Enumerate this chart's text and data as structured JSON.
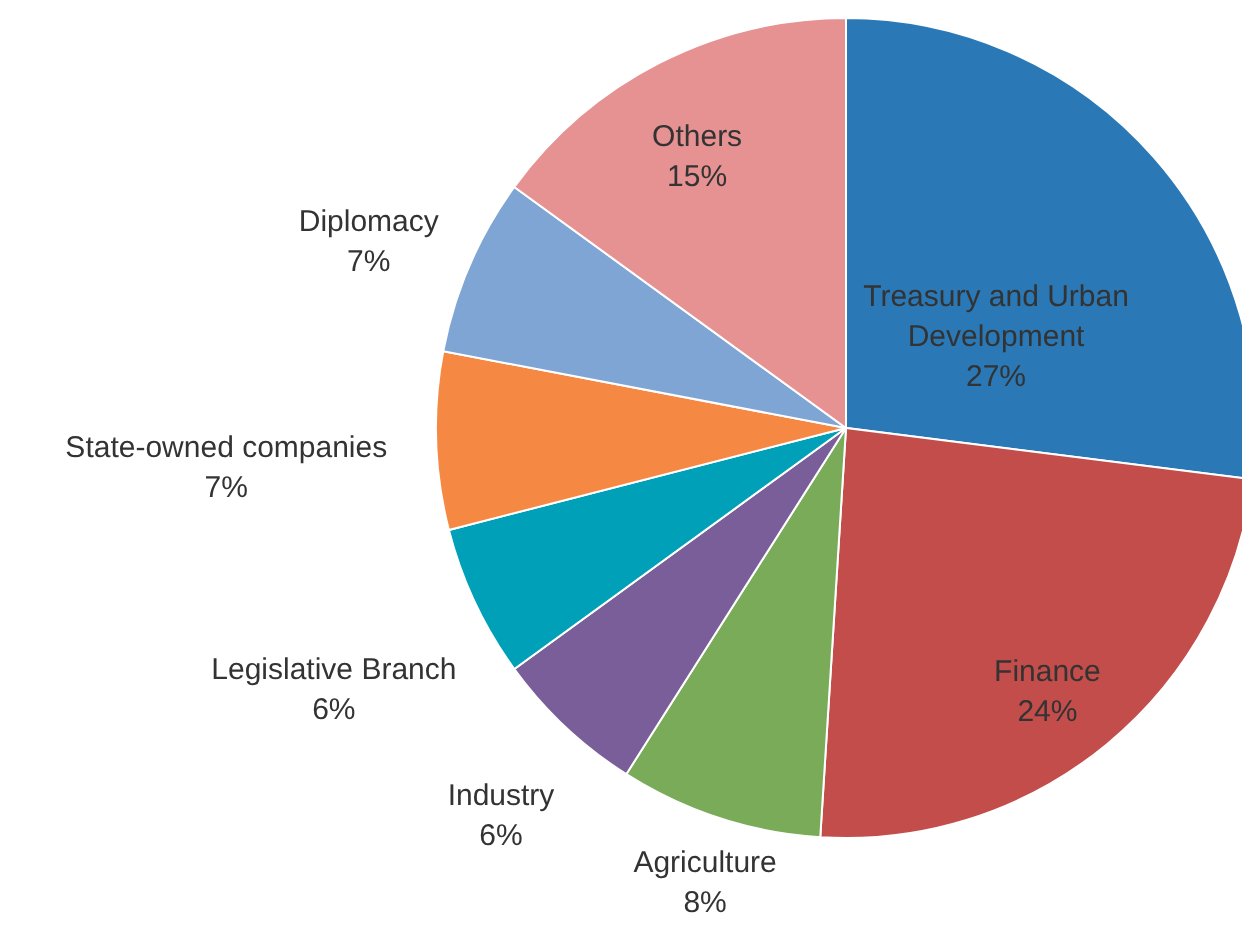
{
  "chart_data": {
    "type": "pie",
    "categories": [
      "Treasury and Urban Development",
      "Finance",
      "Agriculture",
      "Industry",
      "Legislative Branch",
      "State-owned companies",
      "Diplomacy",
      "Others"
    ],
    "values": [
      27,
      24,
      8,
      6,
      6,
      7,
      7,
      15
    ],
    "value_labels": [
      "27%",
      "24%",
      "8%",
      "6%",
      "6%",
      "7%",
      "7%",
      "15%"
    ],
    "colors": [
      "#2a78b5",
      "#c24d4a",
      "#7aab59",
      "#795e9a",
      "#00a0b9",
      "#f58943",
      "#7ea5d3",
      "#e69192"
    ]
  }
}
